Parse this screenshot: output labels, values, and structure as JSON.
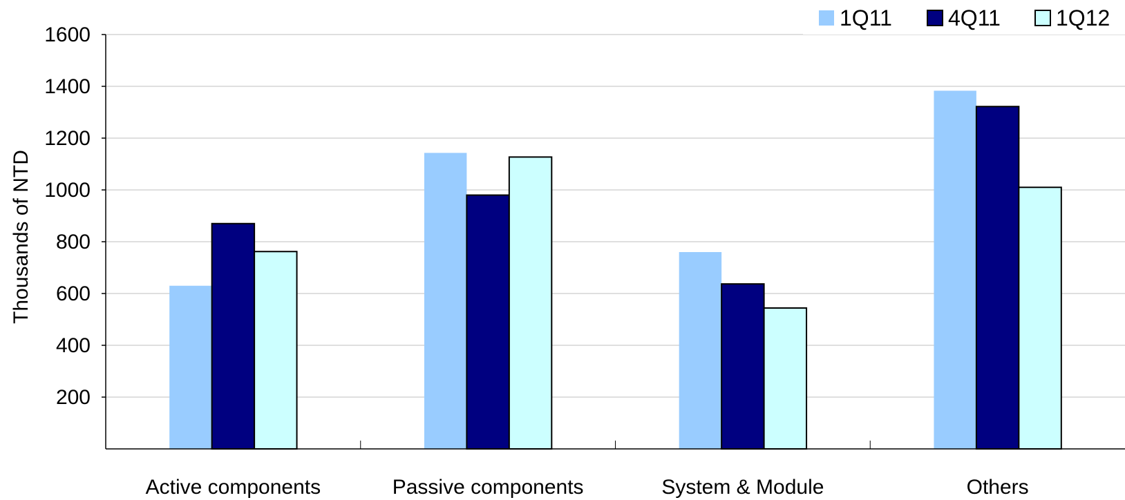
{
  "chart_data": {
    "type": "bar",
    "ylabel": "Thousands of NTD",
    "ylim": [
      0,
      1600
    ],
    "yticks": [
      200,
      400,
      600,
      800,
      1000,
      1200,
      1400,
      1600
    ],
    "grid": true,
    "legend_position": "top-right",
    "categories": [
      "Active components",
      "Passive components",
      "System & Module",
      "Others"
    ],
    "series": [
      {
        "name": "1Q11",
        "color": "#99CCFF",
        "outlined": false,
        "values": [
          630,
          1143,
          760,
          1383
        ]
      },
      {
        "name": "4Q11",
        "color": "#000080",
        "outlined": true,
        "values": [
          870,
          980,
          637,
          1322
        ]
      },
      {
        "name": "1Q12",
        "color": "#CCFFFF",
        "outlined": true,
        "values": [
          762,
          1127,
          544,
          1010
        ]
      }
    ]
  }
}
